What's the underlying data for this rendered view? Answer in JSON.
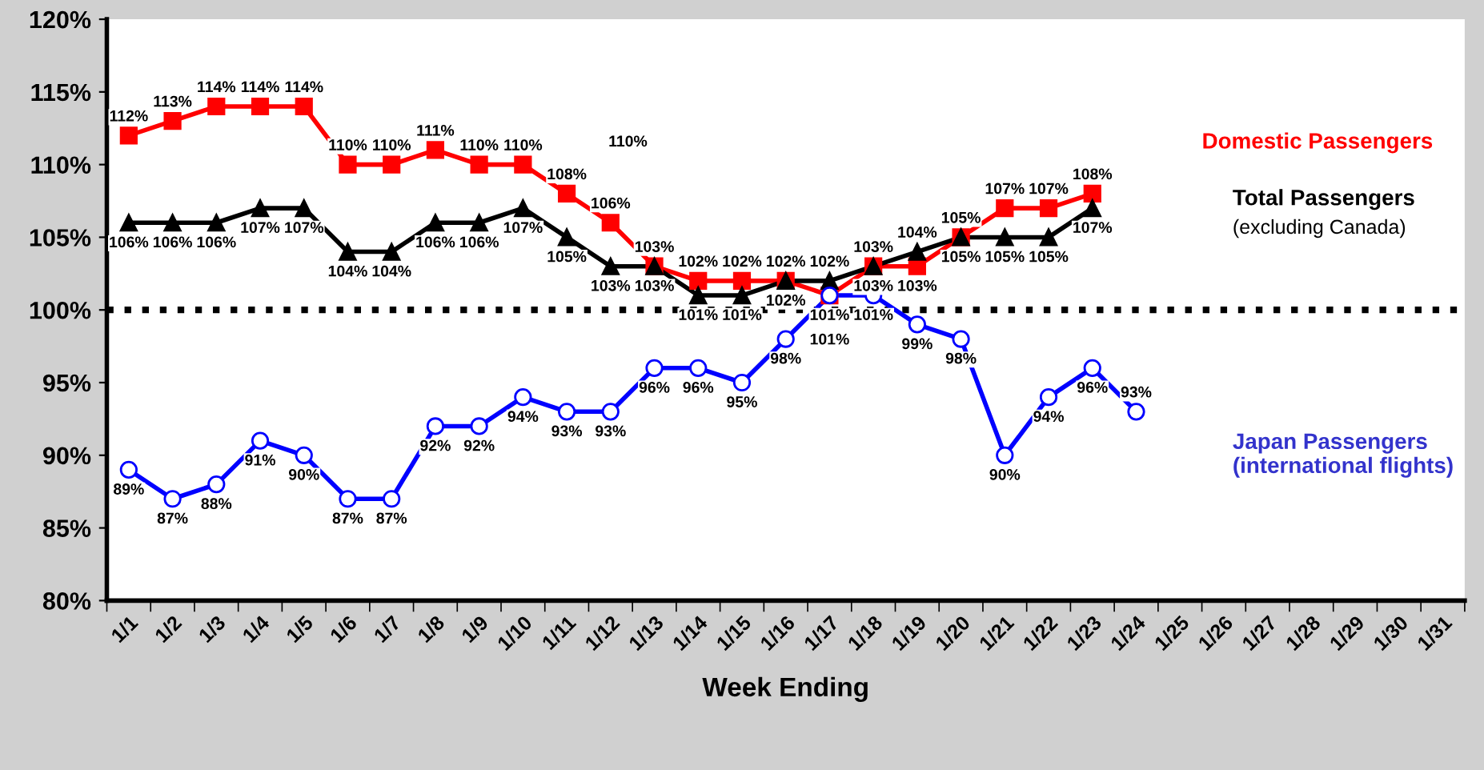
{
  "chart_data": {
    "type": "line",
    "xlabel": "Week Ending",
    "categories": [
      "1/1",
      "1/2",
      "1/3",
      "1/4",
      "1/5",
      "1/6",
      "1/7",
      "1/8",
      "1/9",
      "1/10",
      "1/11",
      "1/12",
      "1/13",
      "1/14",
      "1/15",
      "1/16",
      "1/17",
      "1/18",
      "1/19",
      "1/20",
      "1/21",
      "1/22",
      "1/23",
      "1/24",
      "1/25",
      "1/26",
      "1/27",
      "1/28",
      "1/29",
      "1/30",
      "1/31"
    ],
    "series": [
      {
        "name": "Domestic Passengers",
        "color": "#ff0000",
        "marker": "square",
        "values": [
          112,
          113,
          114,
          114,
          114,
          110,
          110,
          111,
          110,
          110,
          108,
          106,
          103,
          102,
          102,
          102,
          101,
          103,
          103,
          105,
          107,
          107,
          108,
          null,
          null,
          null,
          null,
          null,
          null,
          null,
          null
        ],
        "value_labels": [
          "112%",
          "113%",
          "114%",
          "114%",
          "114%",
          "110%",
          "110%",
          "111%",
          "110%",
          "110%",
          "108%",
          "106%",
          "103%",
          "102%",
          "102%",
          "102%",
          "101%",
          "103%",
          "103%",
          "105%",
          "107%",
          "107%",
          "108%",
          null,
          null,
          null,
          null,
          null,
          null,
          null,
          null
        ]
      },
      {
        "name": "Total Passengers",
        "color": "#000000",
        "marker": "triangle",
        "values": [
          106,
          106,
          106,
          107,
          107,
          104,
          104,
          106,
          106,
          107,
          105,
          103,
          103,
          101,
          101,
          102,
          102,
          103,
          104,
          105,
          105,
          105,
          107,
          null,
          null,
          null,
          null,
          null,
          null,
          null,
          null
        ],
        "value_labels": [
          "106%",
          "106%",
          "106%",
          "107%",
          "107%",
          "104%",
          "104%",
          "106%",
          "106%",
          "107%",
          "105%",
          "103%",
          "103%",
          "101%",
          "101%",
          "102%",
          "102%",
          "103%",
          "104%",
          "105%",
          "105%",
          "105%",
          "107%",
          null,
          null,
          null,
          null,
          null,
          null,
          null,
          null
        ]
      },
      {
        "name": "Japan Passengers (international flights)",
        "color": "#0000ff",
        "marker": "circle",
        "values": [
          89,
          87,
          88,
          91,
          90,
          87,
          87,
          92,
          92,
          94,
          93,
          93,
          96,
          96,
          95,
          98,
          101,
          101,
          99,
          98,
          90,
          94,
          96,
          93,
          null,
          null,
          null,
          null,
          null,
          null,
          null
        ],
        "value_labels": [
          "89%",
          "87%",
          "88%",
          "91%",
          "90%",
          "87%",
          "87%",
          "92%",
          "92%",
          "94%",
          "93%",
          "93%",
          "96%",
          "96%",
          "95%",
          "98%",
          "101%",
          "101%",
          "99%",
          "98%",
          "90%",
          "94%",
          "96%",
          "93%",
          null,
          null,
          null,
          null,
          null,
          null,
          null
        ]
      }
    ],
    "ylim": [
      80,
      120
    ],
    "yticks": [
      {
        "value": 80,
        "label": "80%"
      },
      {
        "value": 85,
        "label": "85%"
      },
      {
        "value": 90,
        "label": "90%"
      },
      {
        "value": 95,
        "label": "95%"
      },
      {
        "value": 100,
        "label": "100%"
      },
      {
        "value": 105,
        "label": "105%"
      },
      {
        "value": 110,
        "label": "110%"
      },
      {
        "value": 115,
        "label": "115%"
      },
      {
        "value": 120,
        "label": "120%"
      }
    ],
    "ref_lines": [
      {
        "axis": "y",
        "value": 100,
        "color": "#000000",
        "line_style": "dotted"
      }
    ],
    "annotations": [
      "(excluding Canada)",
      "110%"
    ],
    "grid": false,
    "legend": false,
    "line_style": "solid"
  }
}
